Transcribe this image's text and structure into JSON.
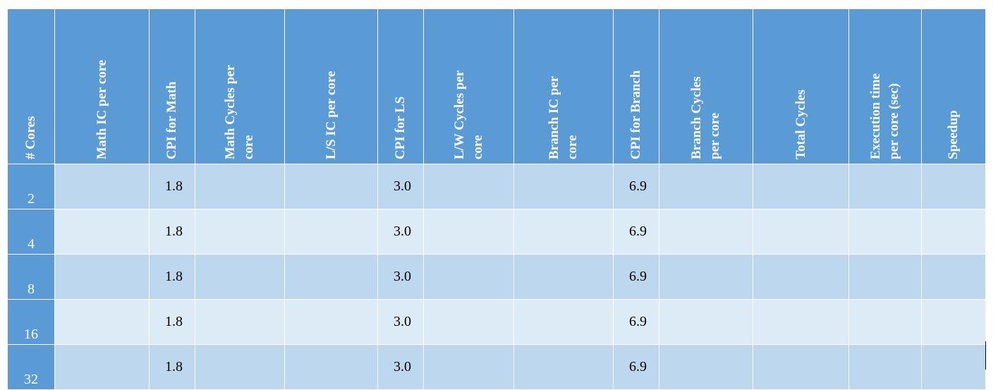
{
  "table": {
    "header": [
      [
        "# Cores"
      ],
      [
        "Math IC per core"
      ],
      [
        "CPI for Math"
      ],
      [
        "Math Cycles per",
        "core"
      ],
      [
        "L/S IC per core"
      ],
      [
        "CPI for LS"
      ],
      [
        "L/W Cycles per",
        "core"
      ],
      [
        "Branch IC per",
        "core"
      ],
      [
        "CPI for Branch"
      ],
      [
        "Branch Cycles",
        "per core"
      ],
      [
        "Total Cycles"
      ],
      [
        "Execution time",
        "per core (sec)"
      ],
      [
        "Speedup"
      ]
    ],
    "rows": [
      {
        "cores": "2",
        "cpi_math": "1.8",
        "cpi_ls": "3.0",
        "cpi_branch": "6.9"
      },
      {
        "cores": "4",
        "cpi_math": "1.8",
        "cpi_ls": "3.0",
        "cpi_branch": "6.9"
      },
      {
        "cores": "8",
        "cpi_math": "1.8",
        "cpi_ls": "3.0",
        "cpi_branch": "6.9"
      },
      {
        "cores": "16",
        "cpi_math": "1.8",
        "cpi_ls": "3.0",
        "cpi_branch": "6.9"
      },
      {
        "cores": "32",
        "cpi_math": "1.8",
        "cpi_ls": "3.0",
        "cpi_branch": "6.9"
      }
    ]
  }
}
